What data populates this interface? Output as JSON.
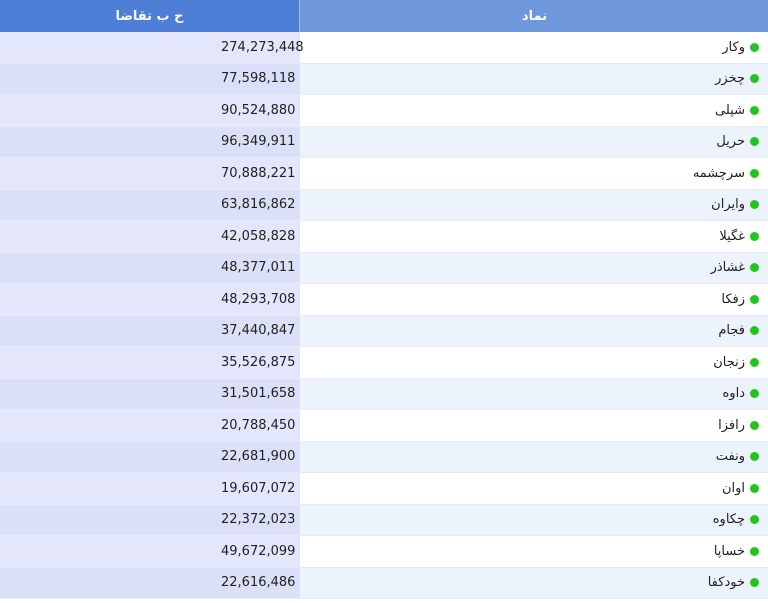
{
  "table": {
    "header": {
      "symbol": "نماد",
      "demand": "ح ب تقاضا"
    },
    "status_color": "#22c51d",
    "rows": [
      {
        "symbol": "وکار",
        "demand": "274,273,448"
      },
      {
        "symbol": "چخزر",
        "demand": "77,598,118"
      },
      {
        "symbol": "شپلی",
        "demand": "90,524,880"
      },
      {
        "symbol": "حریل",
        "demand": "96,349,911"
      },
      {
        "symbol": "سرچشمه",
        "demand": "70,888,221"
      },
      {
        "symbol": "وایران",
        "demand": "63,816,862"
      },
      {
        "symbol": "غگیلا",
        "demand": "42,058,828"
      },
      {
        "symbol": "غشاذر",
        "demand": "48,377,011"
      },
      {
        "symbol": "زفکا",
        "demand": "48,293,708"
      },
      {
        "symbol": "فجام",
        "demand": "37,440,847"
      },
      {
        "symbol": "زنجان",
        "demand": "35,526,875"
      },
      {
        "symbol": "داوه",
        "demand": "31,501,658"
      },
      {
        "symbol": "رافزا",
        "demand": "20,788,450"
      },
      {
        "symbol": "ونفت",
        "demand": "22,681,900"
      },
      {
        "symbol": "اوان",
        "demand": "19,607,072"
      },
      {
        "symbol": "چکاوه",
        "demand": "22,372,023"
      },
      {
        "symbol": "خساپا",
        "demand": "49,672,099"
      },
      {
        "symbol": "خودکفا",
        "demand": "22,616,486"
      }
    ]
  }
}
